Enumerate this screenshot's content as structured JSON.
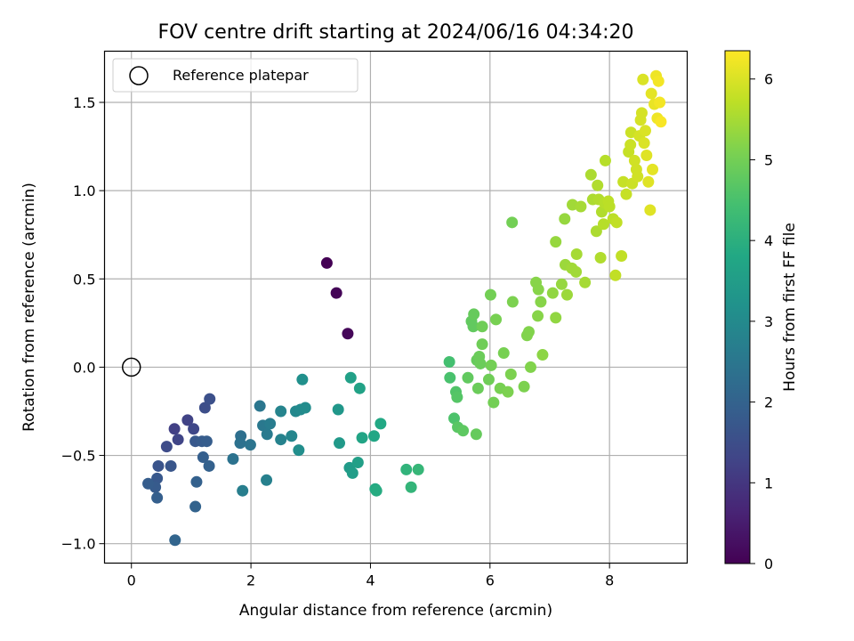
{
  "chart_data": {
    "type": "scatter",
    "title": "FOV centre drift starting at 2024/06/16 04:34:20",
    "xlabel": "Angular distance from reference (arcmin)",
    "ylabel": "Rotation from reference (arcmin)",
    "xlim": [
      -0.45,
      9.3
    ],
    "ylim": [
      -1.11,
      1.79
    ],
    "xticks": [
      0,
      2,
      4,
      6,
      8
    ],
    "yticks": [
      -1.0,
      -0.5,
      0.0,
      0.5,
      1.0,
      1.5
    ],
    "ytick_labels": [
      "−1.0",
      "−0.5",
      "0.0",
      "0.5",
      "1.0",
      "1.5"
    ],
    "grid": true,
    "legend": {
      "position": "top-left",
      "entries": [
        "Reference platepar"
      ]
    },
    "reference_point": {
      "x": 0,
      "y": 0,
      "label": "Reference platepar"
    },
    "colorbar": {
      "label": "Hours from first FF file",
      "range": [
        0,
        6.35
      ],
      "ticks": [
        0,
        1,
        2,
        3,
        4,
        5,
        6
      ],
      "colormap": "viridis"
    },
    "points": [
      [
        3.27,
        0.59,
        0.0
      ],
      [
        3.43,
        0.42,
        0.05
      ],
      [
        3.62,
        0.19,
        0.1
      ],
      [
        0.72,
        -0.35,
        1.2
      ],
      [
        0.94,
        -0.3,
        1.25
      ],
      [
        0.78,
        -0.41,
        1.3
      ],
      [
        1.04,
        -0.35,
        1.35
      ],
      [
        0.59,
        -0.45,
        1.45
      ],
      [
        1.23,
        -0.23,
        1.5
      ],
      [
        1.31,
        -0.18,
        1.55
      ],
      [
        0.45,
        -0.56,
        1.65
      ],
      [
        0.66,
        -0.56,
        1.7
      ],
      [
        1.07,
        -0.42,
        1.75
      ],
      [
        1.18,
        -0.42,
        1.8
      ],
      [
        1.26,
        -0.42,
        1.85
      ],
      [
        1.2,
        -0.51,
        1.9
      ],
      [
        1.3,
        -0.56,
        1.95
      ],
      [
        0.43,
        -0.63,
        1.75
      ],
      [
        0.4,
        -0.68,
        1.8
      ],
      [
        0.28,
        -0.66,
        1.85
      ],
      [
        0.43,
        -0.74,
        1.9
      ],
      [
        1.09,
        -0.65,
        1.95
      ],
      [
        1.07,
        -0.79,
        2.0
      ],
      [
        0.73,
        -0.98,
        2.05
      ],
      [
        1.83,
        -0.39,
        2.3
      ],
      [
        1.82,
        -0.43,
        2.35
      ],
      [
        1.7,
        -0.52,
        2.4
      ],
      [
        1.99,
        -0.44,
        2.45
      ],
      [
        2.15,
        -0.22,
        2.5
      ],
      [
        2.2,
        -0.33,
        2.55
      ],
      [
        2.27,
        -0.38,
        2.6
      ],
      [
        2.32,
        -0.32,
        2.65
      ],
      [
        1.86,
        -0.7,
        2.7
      ],
      [
        2.26,
        -0.64,
        2.75
      ],
      [
        2.5,
        -0.41,
        2.8
      ],
      [
        2.5,
        -0.25,
        2.85
      ],
      [
        2.68,
        -0.39,
        2.9
      ],
      [
        2.75,
        -0.25,
        2.95
      ],
      [
        2.83,
        -0.24,
        3.0
      ],
      [
        2.91,
        -0.23,
        3.05
      ],
      [
        2.8,
        -0.47,
        3.1
      ],
      [
        2.86,
        -0.07,
        3.15
      ],
      [
        3.46,
        -0.24,
        3.35
      ],
      [
        3.48,
        -0.43,
        3.4
      ],
      [
        3.65,
        -0.57,
        3.45
      ],
      [
        3.7,
        -0.6,
        3.5
      ],
      [
        3.79,
        -0.54,
        3.55
      ],
      [
        3.67,
        -0.06,
        3.6
      ],
      [
        3.82,
        -0.12,
        3.65
      ],
      [
        3.86,
        -0.4,
        3.7
      ],
      [
        4.06,
        -0.39,
        3.75
      ],
      [
        4.17,
        -0.32,
        3.8
      ],
      [
        4.08,
        -0.69,
        3.85
      ],
      [
        4.1,
        -0.7,
        3.9
      ],
      [
        4.6,
        -0.58,
        4.1
      ],
      [
        4.68,
        -0.68,
        4.15
      ],
      [
        4.8,
        -0.58,
        4.2
      ],
      [
        5.32,
        0.03,
        4.45
      ],
      [
        5.33,
        -0.06,
        4.5
      ],
      [
        5.4,
        -0.29,
        4.55
      ],
      [
        5.43,
        -0.14,
        4.6
      ],
      [
        5.45,
        -0.17,
        4.65
      ],
      [
        5.46,
        -0.34,
        4.7
      ],
      [
        5.55,
        -0.36,
        4.75
      ],
      [
        5.63,
        -0.06,
        4.8
      ],
      [
        5.69,
        0.26,
        4.8
      ],
      [
        5.72,
        0.23,
        4.8
      ],
      [
        5.73,
        0.3,
        4.85
      ],
      [
        5.77,
        -0.38,
        4.85
      ],
      [
        5.78,
        0.04,
        4.85
      ],
      [
        5.8,
        -0.12,
        4.9
      ],
      [
        5.82,
        0.06,
        4.9
      ],
      [
        5.84,
        0.02,
        4.9
      ],
      [
        5.87,
        0.13,
        4.95
      ],
      [
        5.87,
        0.23,
        4.95
      ],
      [
        5.98,
        -0.07,
        4.95
      ],
      [
        6.01,
        0.41,
        5.0
      ],
      [
        6.02,
        0.01,
        5.0
      ],
      [
        6.06,
        -0.2,
        5.0
      ],
      [
        6.1,
        0.27,
        5.05
      ],
      [
        6.17,
        -0.12,
        5.05
      ],
      [
        6.23,
        0.08,
        5.05
      ],
      [
        6.3,
        -0.14,
        5.1
      ],
      [
        6.35,
        -0.04,
        5.1
      ],
      [
        6.38,
        0.37,
        5.1
      ],
      [
        6.37,
        0.82,
        5.0
      ],
      [
        6.57,
        -0.11,
        5.1
      ],
      [
        6.62,
        0.18,
        5.15
      ],
      [
        6.65,
        0.2,
        5.15
      ],
      [
        6.68,
        0.0,
        5.15
      ],
      [
        6.77,
        0.48,
        5.2
      ],
      [
        6.8,
        0.29,
        5.2
      ],
      [
        6.81,
        0.44,
        5.2
      ],
      [
        6.85,
        0.37,
        5.2
      ],
      [
        6.88,
        0.07,
        5.25
      ],
      [
        7.05,
        0.42,
        5.3
      ],
      [
        7.1,
        0.28,
        5.3
      ],
      [
        7.1,
        0.71,
        5.35
      ],
      [
        7.2,
        0.47,
        5.35
      ],
      [
        7.25,
        0.84,
        5.35
      ],
      [
        7.26,
        0.58,
        5.4
      ],
      [
        7.29,
        0.41,
        5.4
      ],
      [
        7.37,
        0.56,
        5.45
      ],
      [
        7.38,
        0.92,
        5.45
      ],
      [
        7.44,
        0.54,
        5.45
      ],
      [
        7.45,
        0.64,
        5.5
      ],
      [
        7.52,
        0.91,
        5.5
      ],
      [
        7.59,
        0.48,
        5.5
      ],
      [
        7.69,
        1.09,
        5.55
      ],
      [
        7.72,
        0.95,
        5.55
      ],
      [
        7.78,
        0.77,
        5.55
      ],
      [
        7.8,
        1.03,
        5.6
      ],
      [
        7.82,
        0.95,
        5.6
      ],
      [
        7.85,
        0.62,
        5.6
      ],
      [
        7.87,
        0.88,
        5.6
      ],
      [
        7.9,
        0.81,
        5.65
      ],
      [
        7.92,
        0.93,
        5.65
      ],
      [
        7.93,
        1.17,
        5.65
      ],
      [
        7.98,
        0.94,
        5.7
      ],
      [
        8.0,
        0.91,
        5.7
      ],
      [
        8.06,
        0.84,
        5.7
      ],
      [
        8.1,
        0.52,
        5.75
      ],
      [
        8.12,
        0.82,
        5.75
      ],
      [
        8.2,
        0.63,
        5.75
      ],
      [
        8.23,
        1.05,
        5.8
      ],
      [
        8.28,
        0.98,
        5.8
      ],
      [
        8.32,
        1.22,
        5.8
      ],
      [
        8.35,
        1.26,
        5.85
      ],
      [
        8.36,
        1.33,
        5.85
      ],
      [
        8.38,
        1.04,
        5.85
      ],
      [
        8.42,
        1.17,
        5.9
      ],
      [
        8.45,
        1.12,
        5.9
      ],
      [
        8.47,
        1.08,
        5.9
      ],
      [
        8.5,
        1.31,
        5.95
      ],
      [
        8.52,
        1.4,
        5.95
      ],
      [
        8.54,
        1.44,
        5.95
      ],
      [
        8.56,
        1.63,
        6.0
      ],
      [
        8.58,
        1.27,
        6.0
      ],
      [
        8.6,
        1.34,
        6.0
      ],
      [
        8.62,
        1.2,
        6.05
      ],
      [
        8.65,
        1.05,
        6.05
      ],
      [
        8.68,
        0.89,
        6.05
      ],
      [
        8.7,
        1.55,
        6.1
      ],
      [
        8.72,
        1.12,
        6.1
      ],
      [
        8.75,
        1.49,
        6.15
      ],
      [
        8.78,
        1.65,
        6.2
      ],
      [
        8.8,
        1.41,
        6.2
      ],
      [
        8.82,
        1.62,
        6.25
      ],
      [
        8.84,
        1.5,
        6.25
      ],
      [
        8.86,
        1.39,
        6.3
      ]
    ]
  }
}
